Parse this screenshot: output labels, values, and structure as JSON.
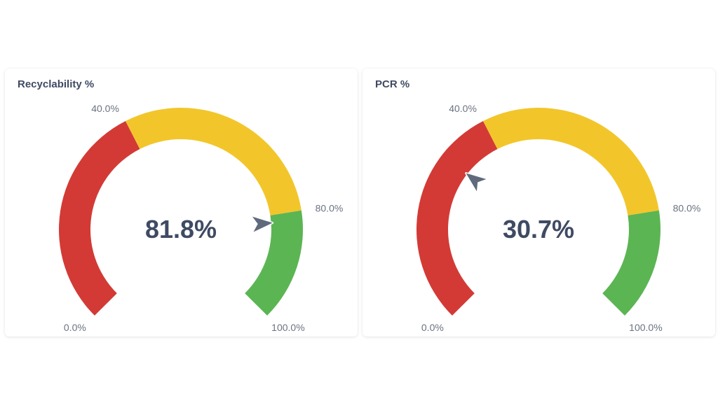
{
  "chart_data": [
    {
      "type": "gauge",
      "title": "Recyclability %",
      "value": 81.8,
      "value_label": "81.8%",
      "min": 0,
      "max": 100,
      "bands": [
        {
          "from": 0,
          "to": 40,
          "color": "#d33a35"
        },
        {
          "from": 40,
          "to": 80,
          "color": "#f2c62b"
        },
        {
          "from": 80,
          "to": 100,
          "color": "#5bb553"
        }
      ],
      "ticks": [
        {
          "value": 0,
          "label": "0.0%"
        },
        {
          "value": 40,
          "label": "40.0%"
        },
        {
          "value": 80,
          "label": "80.0%"
        },
        {
          "value": 100,
          "label": "100.0%"
        }
      ]
    },
    {
      "type": "gauge",
      "title": "PCR %",
      "value": 30.7,
      "value_label": "30.7%",
      "min": 0,
      "max": 100,
      "bands": [
        {
          "from": 0,
          "to": 40,
          "color": "#d33a35"
        },
        {
          "from": 40,
          "to": 80,
          "color": "#f2c62b"
        },
        {
          "from": 80,
          "to": 100,
          "color": "#5bb553"
        }
      ],
      "ticks": [
        {
          "value": 0,
          "label": "0.0%"
        },
        {
          "value": 40,
          "label": "40.0%"
        },
        {
          "value": 80,
          "label": "80.0%"
        },
        {
          "value": 100,
          "label": "100.0%"
        }
      ]
    }
  ],
  "colors": {
    "title": "#3f4a63",
    "needle": "#5f6a7d",
    "tick_text": "#6b7280"
  }
}
